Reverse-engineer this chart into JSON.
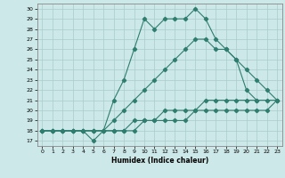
{
  "xlabel": "Humidex (Indice chaleur)",
  "ylabel": "",
  "xlim": [
    -0.5,
    23.5
  ],
  "ylim": [
    16.5,
    30.5
  ],
  "xticks": [
    0,
    1,
    2,
    3,
    4,
    5,
    6,
    7,
    8,
    9,
    10,
    11,
    12,
    13,
    14,
    15,
    16,
    17,
    18,
    19,
    20,
    21,
    22,
    23
  ],
  "yticks": [
    17,
    18,
    19,
    20,
    21,
    22,
    23,
    24,
    25,
    26,
    27,
    28,
    29,
    30
  ],
  "line_color": "#2e7d6e",
  "bg_color": "#cde8e8",
  "grid_color": "#aacccc",
  "lines": [
    {
      "x": [
        0,
        1,
        2,
        3,
        4,
        5,
        6,
        7,
        8,
        9,
        10,
        11,
        12,
        13,
        14,
        15,
        16,
        17,
        18,
        19,
        20,
        21
      ],
      "y": [
        18,
        18,
        18,
        18,
        18,
        17,
        18,
        21,
        23,
        26,
        29,
        28,
        29,
        29,
        29,
        30,
        29,
        27,
        26,
        25,
        22,
        21
      ]
    },
    {
      "x": [
        0,
        1,
        2,
        3,
        4,
        5,
        6,
        7,
        8,
        9,
        10,
        11,
        12,
        13,
        14,
        15,
        16,
        17,
        18,
        19,
        20,
        21,
        22,
        23
      ],
      "y": [
        18,
        18,
        18,
        18,
        18,
        18,
        18,
        19,
        20,
        21,
        22,
        23,
        24,
        25,
        26,
        27,
        27,
        26,
        26,
        25,
        24,
        23,
        22,
        21
      ]
    },
    {
      "x": [
        0,
        1,
        2,
        3,
        4,
        5,
        6,
        7,
        8,
        9,
        10,
        11,
        12,
        13,
        14,
        15,
        16,
        17,
        18,
        19,
        20,
        21,
        22,
        23
      ],
      "y": [
        18,
        18,
        18,
        18,
        18,
        18,
        18,
        18,
        18,
        19,
        19,
        19,
        20,
        20,
        20,
        20,
        21,
        21,
        21,
        21,
        21,
        21,
        21,
        21
      ]
    },
    {
      "x": [
        0,
        1,
        2,
        3,
        4,
        5,
        6,
        7,
        8,
        9,
        10,
        11,
        12,
        13,
        14,
        15,
        16,
        17,
        18,
        19,
        20,
        21,
        22,
        23
      ],
      "y": [
        18,
        18,
        18,
        18,
        18,
        18,
        18,
        18,
        18,
        18,
        19,
        19,
        19,
        19,
        19,
        20,
        20,
        20,
        20,
        20,
        20,
        20,
        20,
        21
      ]
    }
  ]
}
